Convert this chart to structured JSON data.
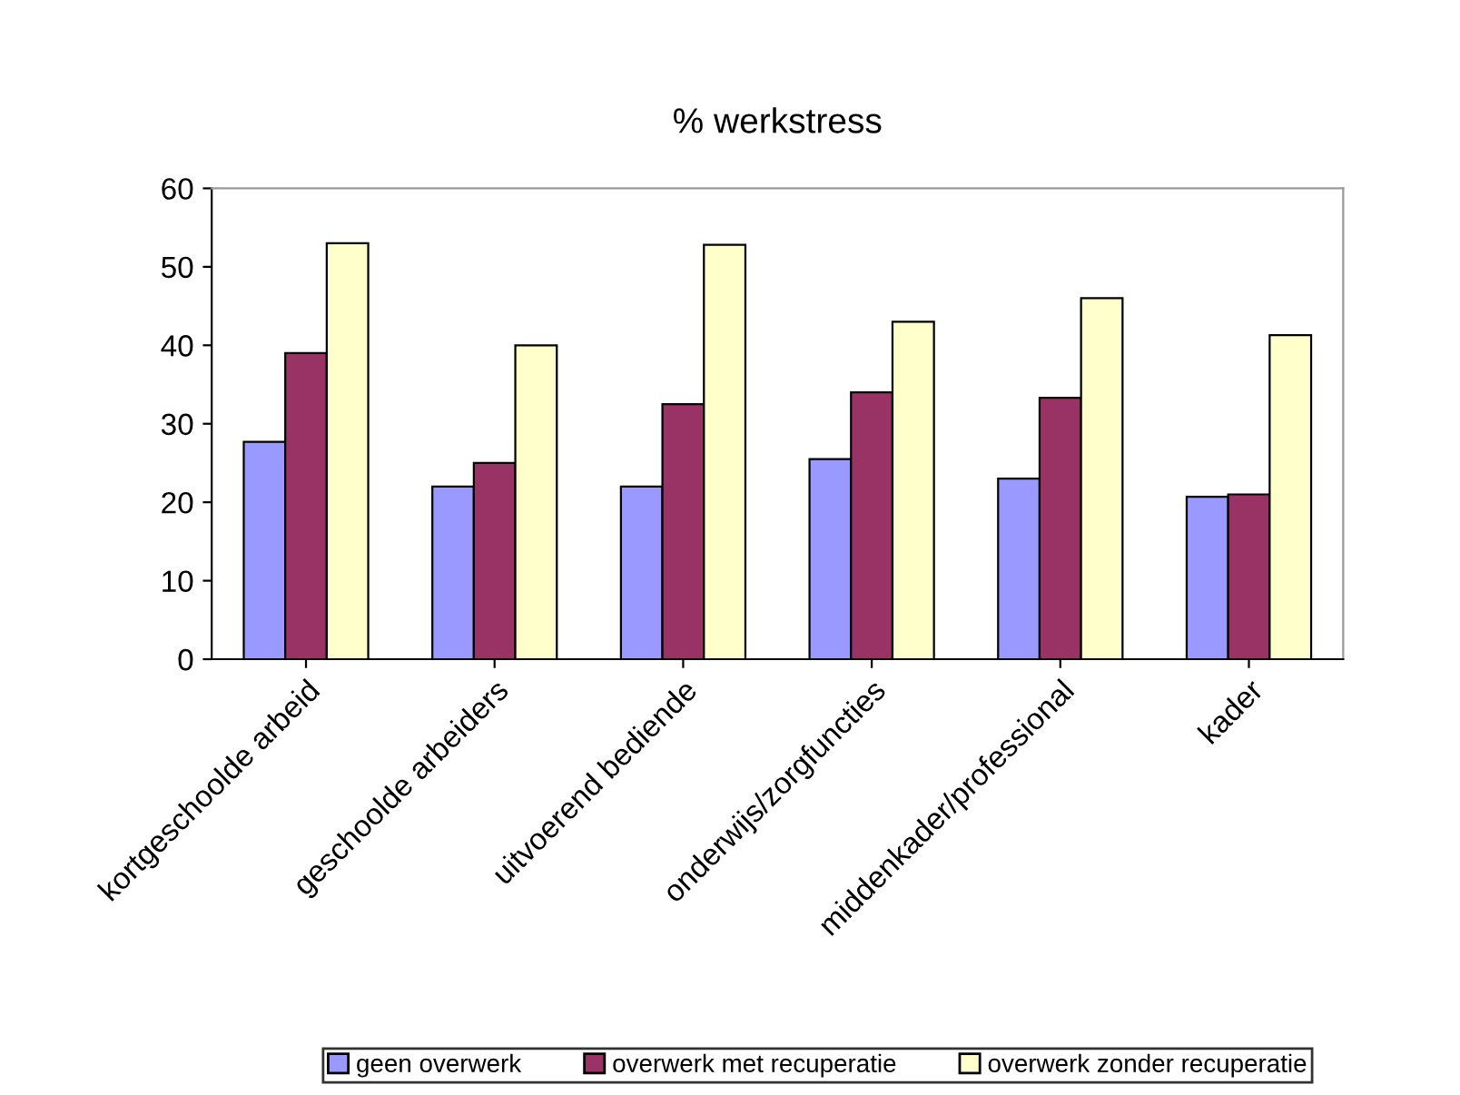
{
  "chart_data": {
    "type": "bar",
    "title": "% werkstress",
    "categories": [
      "kortgeschoolde arbeid",
      "geschoolde arbeiders",
      "uitvoerend bediende",
      "onderwijs/zorgfuncties",
      "middenkader/professional",
      "kader"
    ],
    "series": [
      {
        "name": "geen overwerk",
        "color": "#9999ff",
        "values": [
          27.7,
          22,
          22,
          25.5,
          23,
          20.7
        ]
      },
      {
        "name": "overwerk met recuperatie",
        "color": "#993366",
        "values": [
          39,
          25,
          32.5,
          34,
          33.3,
          21
        ]
      },
      {
        "name": "overwerk zonder recuperatie",
        "color": "#ffffcc",
        "values": [
          53,
          40,
          52.8,
          43,
          46,
          41.3
        ]
      }
    ],
    "ylim": [
      0,
      60
    ],
    "yticks": [
      0,
      10,
      20,
      30,
      40,
      50,
      60
    ],
    "grid": false,
    "legend": "bottom"
  }
}
